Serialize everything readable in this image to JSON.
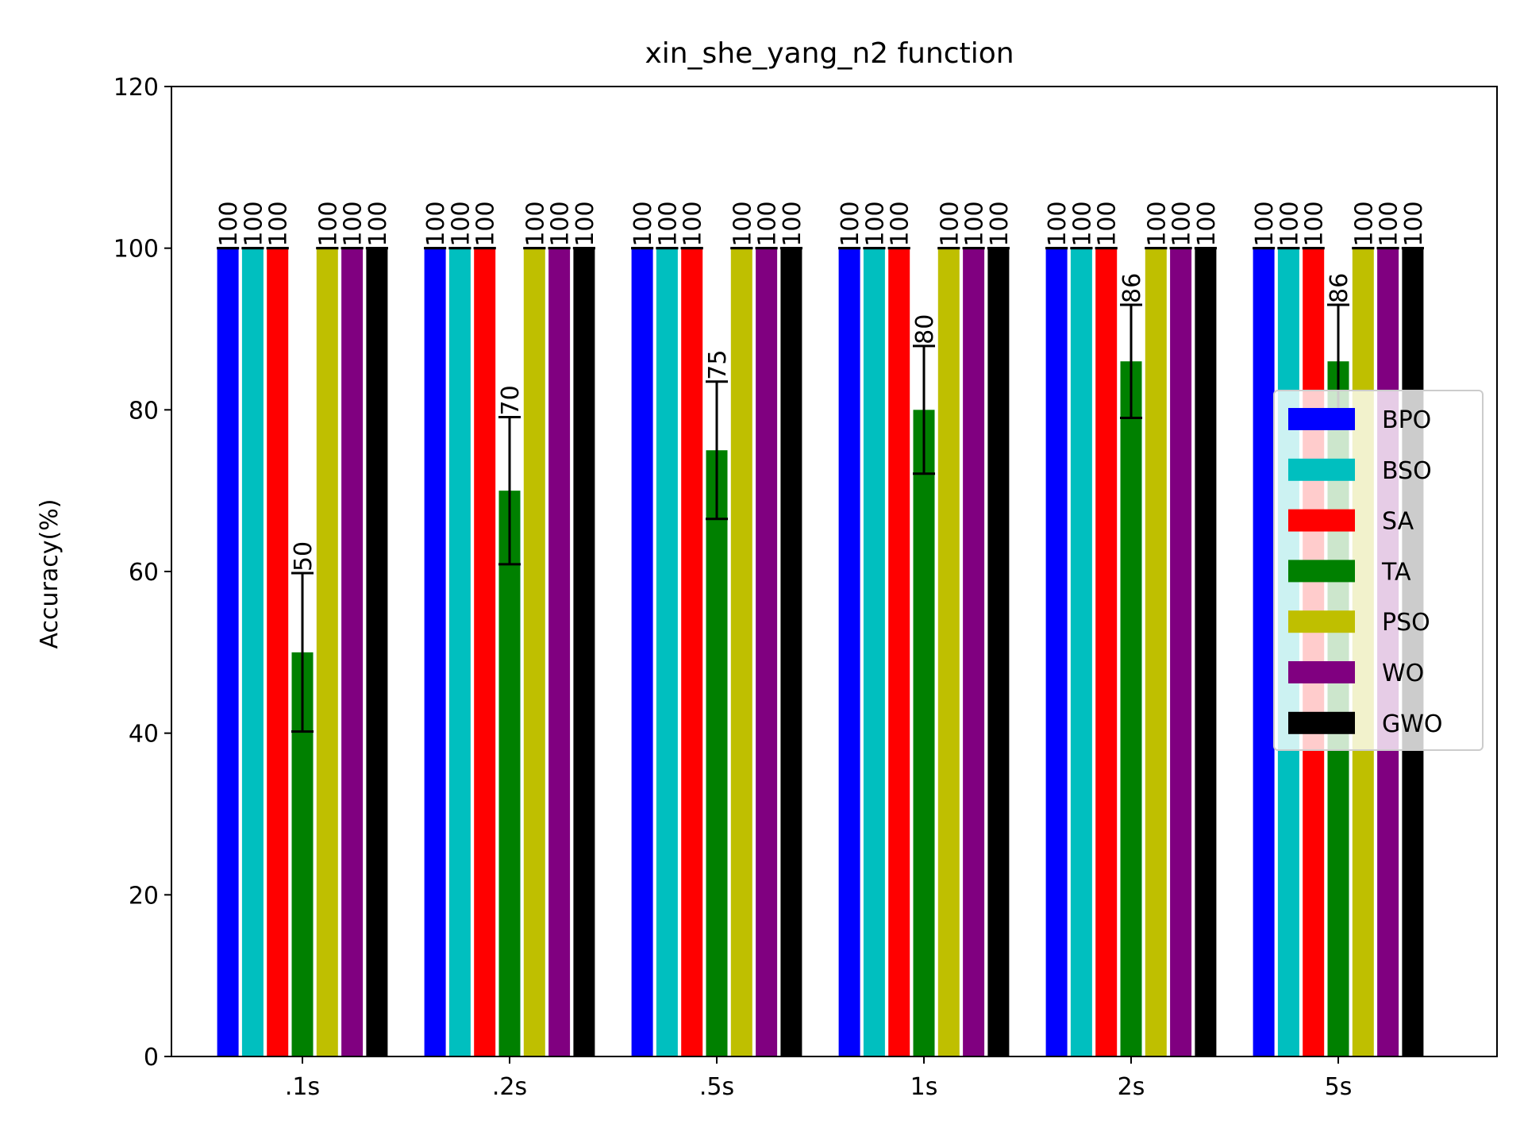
{
  "chart_data": {
    "type": "bar",
    "title": "xin_she_yang_n2 function",
    "xlabel": "",
    "ylabel": "Accuracy(%)",
    "ylim": [
      0,
      120
    ],
    "yticks": [
      0,
      20,
      40,
      60,
      80,
      100,
      120
    ],
    "categories": [
      ".1s",
      ".2s",
      ".5s",
      "1s",
      "2s",
      "5s"
    ],
    "grid": false,
    "legend_position": "right",
    "series": [
      {
        "name": "BPO",
        "color": "#0000ff",
        "values": [
          100,
          100,
          100,
          100,
          100,
          100
        ],
        "errors": [
          0,
          0,
          0,
          0,
          0,
          0
        ]
      },
      {
        "name": "BSO",
        "color": "#00bfbf",
        "values": [
          100,
          100,
          100,
          100,
          100,
          100
        ],
        "errors": [
          0,
          0,
          0,
          0,
          0,
          0
        ]
      },
      {
        "name": "SA",
        "color": "#ff0000",
        "values": [
          100,
          100,
          100,
          100,
          100,
          100
        ],
        "errors": [
          0,
          0,
          0,
          0,
          0,
          0
        ]
      },
      {
        "name": "TA",
        "color": "#008000",
        "values": [
          50,
          70,
          75,
          80,
          86,
          86
        ],
        "errors": [
          9.8,
          9.1,
          8.5,
          7.9,
          7.0,
          7.0
        ]
      },
      {
        "name": "PSO",
        "color": "#bfbf00",
        "values": [
          100,
          100,
          100,
          100,
          100,
          100
        ],
        "errors": [
          0,
          0,
          0,
          0,
          0,
          0
        ]
      },
      {
        "name": "WO",
        "color": "#800080",
        "values": [
          100,
          100,
          100,
          100,
          100,
          100
        ],
        "errors": [
          0,
          0,
          0,
          0,
          0,
          0
        ]
      },
      {
        "name": "GWO",
        "color": "#000000",
        "values": [
          100,
          100,
          100,
          100,
          100,
          100
        ],
        "errors": [
          0,
          0,
          0,
          0,
          0,
          0
        ]
      }
    ]
  }
}
